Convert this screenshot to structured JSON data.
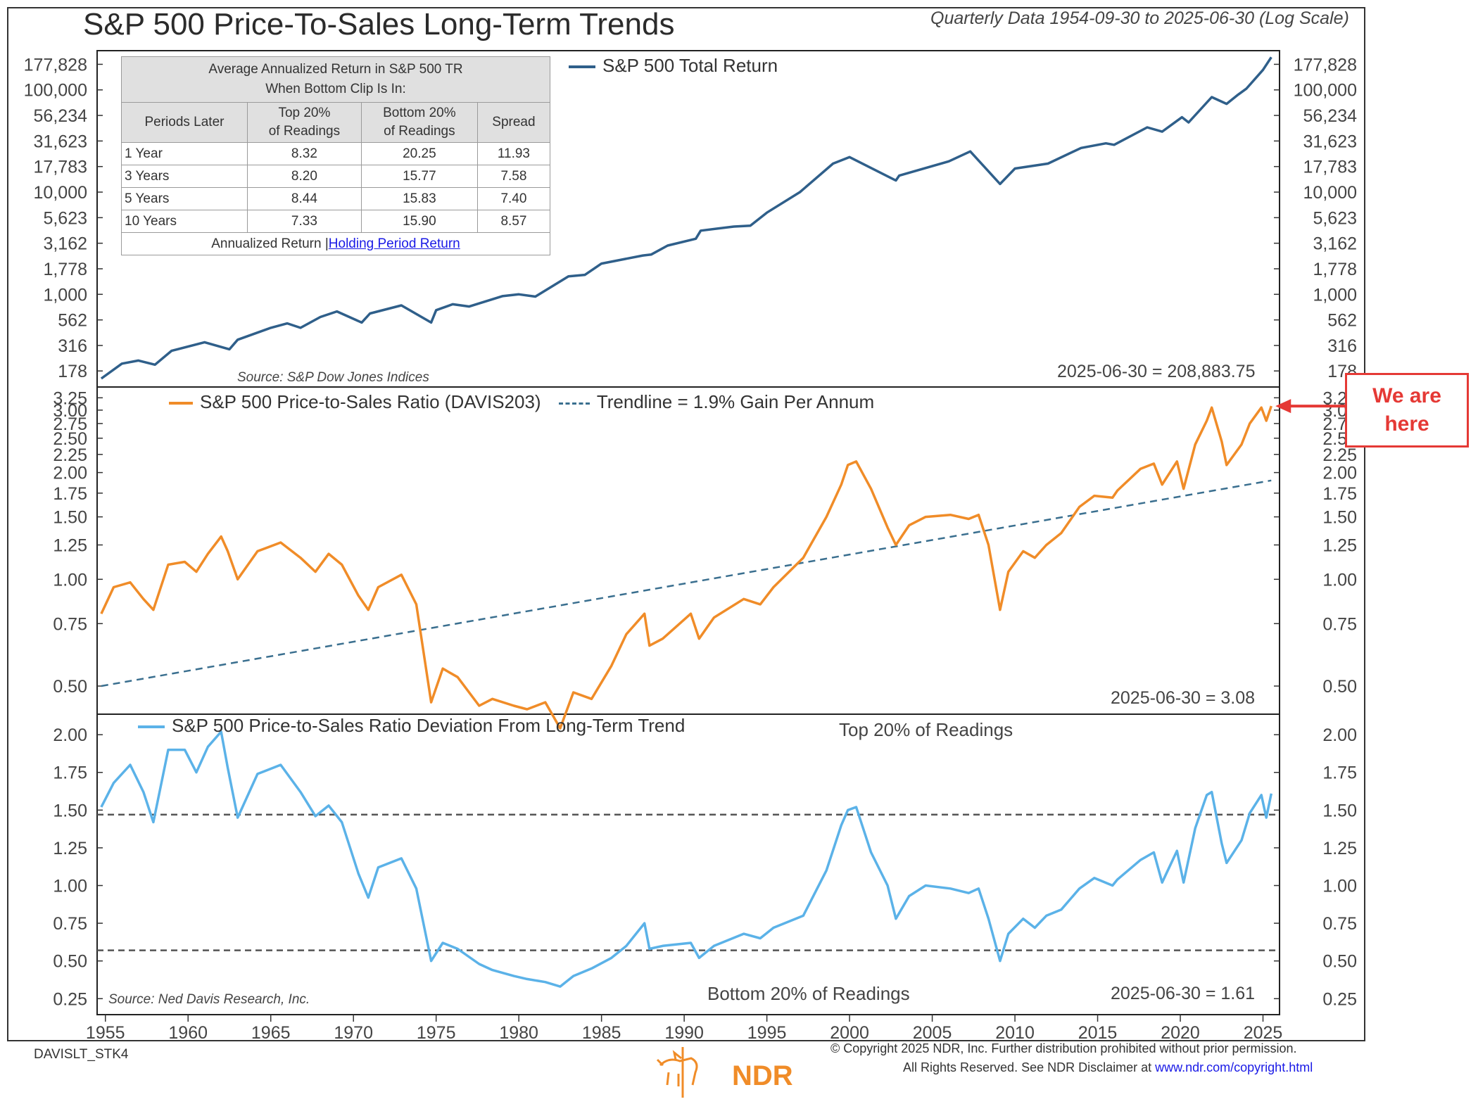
{
  "header": {
    "title": "S&P 500 Price-To-Sales Long-Term Trends",
    "subtitle": "Quarterly Data 1954-09-30 to 2025-06-30 (Log Scale)"
  },
  "x_axis": {
    "ticks": [
      "1955",
      "1960",
      "1965",
      "1970",
      "1975",
      "1980",
      "1985",
      "1990",
      "1995",
      "2000",
      "2005",
      "2010",
      "2015",
      "2020",
      "2025"
    ]
  },
  "table": {
    "title_line1": "Average Annualized Return in S&P 500 TR",
    "title_line2": "When Bottom Clip Is In:",
    "headers": [
      "Periods Later",
      "Top 20%",
      "of Readings",
      "Bottom 20%",
      "of Readings",
      "Spread"
    ],
    "rows": [
      {
        "period": "1 Year",
        "top": "8.32",
        "bottom": "20.25",
        "spread": "11.93"
      },
      {
        "period": "3 Years",
        "top": "8.20",
        "bottom": "15.77",
        "spread": "7.58"
      },
      {
        "period": "5 Years",
        "top": "8.44",
        "bottom": "15.83",
        "spread": "7.40"
      },
      {
        "period": "10 Years",
        "top": "7.33",
        "bottom": "15.90",
        "spread": "8.57"
      }
    ],
    "footer_text": "Annualized Return |",
    "footer_link": "Holding Period Return"
  },
  "callout": {
    "line1": "We are",
    "line2": "here"
  },
  "footer": {
    "code": "DAVISLT_STK4",
    "copyright1": "© Copyright 2025 NDR, Inc. Further distribution prohibited without prior permission.",
    "copyright2": "All Rights Reserved. See NDR Disclaimer at",
    "copyright_link": "www.ndr.com/copyright.html",
    "logo_text": "NDR"
  },
  "colors": {
    "tr": "#2f5f8a",
    "ps": "#f08c28",
    "trend": "#3a6f8f",
    "dev": "#5bb2e8",
    "band": "#555555",
    "callout": "#e53935"
  },
  "chart_data": [
    {
      "type": "line",
      "title": "S&P 500 Total Return",
      "legend": "S&P 500 Total Return",
      "scale": "log",
      "yticks": [
        "178",
        "316",
        "562",
        "1,000",
        "1,778",
        "3,162",
        "5,623",
        "10,000",
        "17,783",
        "31,623",
        "56,234",
        "100,000",
        "177,828"
      ],
      "ytick_values": [
        178,
        316,
        562,
        1000,
        1778,
        3162,
        5623,
        10000,
        17783,
        31623,
        56234,
        100000,
        177828
      ],
      "ylim": [
        150,
        200000
      ],
      "xlim": [
        1954.5,
        2026.0
      ],
      "end_label": "2025-06-30 = 208,883.75",
      "source": "Source:  S&P Dow Jones Indices",
      "x": [
        1954.75,
        1956,
        1957,
        1958,
        1959,
        1961,
        1962.5,
        1963,
        1965,
        1966,
        1966.8,
        1968,
        1969,
        1970.5,
        1971,
        1972.9,
        1974.7,
        1975,
        1976,
        1977,
        1979,
        1980,
        1981,
        1983,
        1984,
        1985,
        1987.5,
        1988,
        1989,
        1990.7,
        1991,
        1993,
        1994,
        1995,
        1997,
        1999,
        2000,
        2002.8,
        2003,
        2006,
        2007.3,
        2009.1,
        2010,
        2012,
        2014,
        2015.5,
        2016,
        2018,
        2018.9,
        2020.1,
        2020.5,
        2021.9,
        2022.8,
        2023.5,
        2024,
        2025.0,
        2025.5
      ],
      "y": [
        150,
        210,
        225,
        205,
        280,
        340,
        290,
        360,
        470,
        520,
        470,
        600,
        680,
        530,
        650,
        780,
        530,
        700,
        800,
        760,
        960,
        1000,
        950,
        1500,
        1550,
        2000,
        2400,
        2450,
        3000,
        3500,
        4200,
        4600,
        4700,
        6300,
        10000,
        19000,
        22000,
        13000,
        14500,
        20000,
        25000,
        12000,
        17000,
        19000,
        27000,
        30000,
        29000,
        43000,
        39000,
        54000,
        48000,
        85000,
        73000,
        90000,
        103000,
        157000,
        208884
      ]
    },
    {
      "type": "line",
      "title": "S&P 500 Price-to-Sales Ratio (DAVIS203)",
      "legend": "S&P 500 Price-to-Sales Ratio (DAVIS203)",
      "trend_legend": "Trendline = 1.9% Gain Per Annum",
      "scale": "log",
      "yticks": [
        "0.50",
        "0.75",
        "1.00",
        "1.25",
        "1.50",
        "1.75",
        "2.00",
        "2.25",
        "2.50",
        "2.75",
        "3.00",
        "3.25"
      ],
      "ytick_values": [
        0.5,
        0.75,
        1.0,
        1.25,
        1.5,
        1.75,
        2.0,
        2.25,
        2.5,
        2.75,
        3.0,
        3.25
      ],
      "ylim": [
        0.44,
        3.3
      ],
      "xlim": [
        1954.5,
        2026.0
      ],
      "trend_start": [
        1954.75,
        0.5
      ],
      "trend_end": [
        2025.5,
        1.9
      ],
      "end_label": "2025-06-30 = 3.08",
      "x": [
        1954.75,
        1955.5,
        1956.5,
        1957.3,
        1957.9,
        1958.8,
        1959.8,
        1960.5,
        1961.2,
        1962.0,
        1962.4,
        1963,
        1964.2,
        1965.6,
        1966.8,
        1967.7,
        1968.5,
        1969.3,
        1970.3,
        1970.9,
        1971.5,
        1972.9,
        1973.8,
        1974.7,
        1975.4,
        1976.3,
        1977.6,
        1978.4,
        1979.7,
        1980.5,
        1981.6,
        1982.5,
        1983.3,
        1984.4,
        1985.6,
        1986.5,
        1987.6,
        1987.9,
        1988.7,
        1990.4,
        1990.9,
        1991.8,
        1993.6,
        1994.6,
        1995.4,
        1997.2,
        1998.6,
        1999.5,
        1999.9,
        2000.4,
        2001.3,
        2002.3,
        2002.8,
        2003.6,
        2004.6,
        2006.1,
        2007.2,
        2007.8,
        2008.4,
        2009.1,
        2009.6,
        2010.5,
        2011.2,
        2011.9,
        2012.8,
        2013.9,
        2014.8,
        2015.9,
        2016.2,
        2017.6,
        2018.4,
        2018.9,
        2019.8,
        2020.2,
        2020.9,
        2021.6,
        2021.9,
        2022.5,
        2022.8,
        2023.7,
        2024.2,
        2024.9,
        2025.2,
        2025.5
      ],
      "y": [
        0.8,
        0.95,
        0.98,
        0.88,
        0.82,
        1.1,
        1.12,
        1.05,
        1.18,
        1.32,
        1.2,
        1.0,
        1.2,
        1.27,
        1.15,
        1.05,
        1.18,
        1.1,
        0.9,
        0.82,
        0.95,
        1.03,
        0.85,
        0.45,
        0.56,
        0.53,
        0.44,
        0.46,
        0.44,
        0.43,
        0.45,
        0.38,
        0.48,
        0.46,
        0.57,
        0.7,
        0.8,
        0.65,
        0.68,
        0.8,
        0.68,
        0.78,
        0.88,
        0.85,
        0.95,
        1.15,
        1.5,
        1.85,
        2.1,
        2.15,
        1.8,
        1.4,
        1.25,
        1.42,
        1.5,
        1.52,
        1.48,
        1.52,
        1.25,
        0.82,
        1.05,
        1.2,
        1.15,
        1.25,
        1.35,
        1.6,
        1.72,
        1.7,
        1.78,
        2.05,
        2.12,
        1.85,
        2.15,
        1.8,
        2.4,
        2.8,
        3.05,
        2.45,
        2.1,
        2.4,
        2.75,
        3.05,
        2.8,
        3.08
      ]
    },
    {
      "type": "line",
      "title": "S&P 500 Price-to-Sales Ratio Deviation From Long-Term Trend",
      "legend": "S&P 500 Price-to-Sales Ratio Deviation From Long-Term Trend",
      "scale": "linear",
      "yticks": [
        "0.25",
        "0.50",
        "0.75",
        "1.00",
        "1.25",
        "1.50",
        "1.75",
        "2.00"
      ],
      "ytick_values": [
        0.25,
        0.5,
        0.75,
        1.0,
        1.25,
        1.5,
        1.75,
        2.0
      ],
      "ylim": [
        0.2,
        2.08
      ],
      "xlim": [
        1954.5,
        2026.0
      ],
      "top_band": 1.47,
      "bottom_band": 0.57,
      "top_band_label": "Top 20% of Readings",
      "bottom_band_label": "Bottom 20% of Readings",
      "end_label": "2025-06-30 = 1.61",
      "source": "Source:  Ned Davis Research, Inc.",
      "x": [
        1954.75,
        1955.5,
        1956.5,
        1957.3,
        1957.9,
        1958.8,
        1959.8,
        1960.5,
        1961.2,
        1962.0,
        1962.4,
        1963,
        1964.2,
        1965.6,
        1966.8,
        1967.7,
        1968.5,
        1969.3,
        1970.3,
        1970.9,
        1971.5,
        1972.9,
        1973.8,
        1974.7,
        1975.4,
        1976.3,
        1977.6,
        1978.4,
        1979.7,
        1980.5,
        1981.6,
        1982.5,
        1983.3,
        1984.4,
        1985.6,
        1986.5,
        1987.6,
        1987.9,
        1988.7,
        1990.4,
        1990.9,
        1991.8,
        1993.6,
        1994.6,
        1995.4,
        1997.2,
        1998.6,
        1999.5,
        1999.9,
        2000.4,
        2001.3,
        2002.3,
        2002.8,
        2003.6,
        2004.6,
        2006.1,
        2007.2,
        2007.8,
        2008.4,
        2009.1,
        2009.6,
        2010.5,
        2011.2,
        2011.9,
        2012.8,
        2013.9,
        2014.8,
        2015.9,
        2016.2,
        2017.6,
        2018.4,
        2018.9,
        2019.8,
        2020.2,
        2020.9,
        2021.6,
        2021.9,
        2022.5,
        2022.8,
        2023.7,
        2024.2,
        2024.9,
        2025.2,
        2025.5
      ],
      "y": [
        1.52,
        1.68,
        1.8,
        1.62,
        1.42,
        1.9,
        1.9,
        1.75,
        1.92,
        2.02,
        1.78,
        1.45,
        1.74,
        1.8,
        1.62,
        1.46,
        1.53,
        1.42,
        1.08,
        0.92,
        1.12,
        1.18,
        0.98,
        0.5,
        0.62,
        0.58,
        0.48,
        0.44,
        0.4,
        0.38,
        0.36,
        0.33,
        0.4,
        0.45,
        0.52,
        0.6,
        0.75,
        0.58,
        0.6,
        0.62,
        0.52,
        0.6,
        0.68,
        0.65,
        0.72,
        0.8,
        1.1,
        1.4,
        1.5,
        1.52,
        1.22,
        1.0,
        0.78,
        0.93,
        1.0,
        0.98,
        0.95,
        0.98,
        0.78,
        0.5,
        0.68,
        0.78,
        0.72,
        0.8,
        0.84,
        0.98,
        1.05,
        1.0,
        1.04,
        1.17,
        1.22,
        1.02,
        1.23,
        1.02,
        1.38,
        1.6,
        1.62,
        1.28,
        1.15,
        1.3,
        1.48,
        1.6,
        1.45,
        1.61
      ]
    }
  ]
}
